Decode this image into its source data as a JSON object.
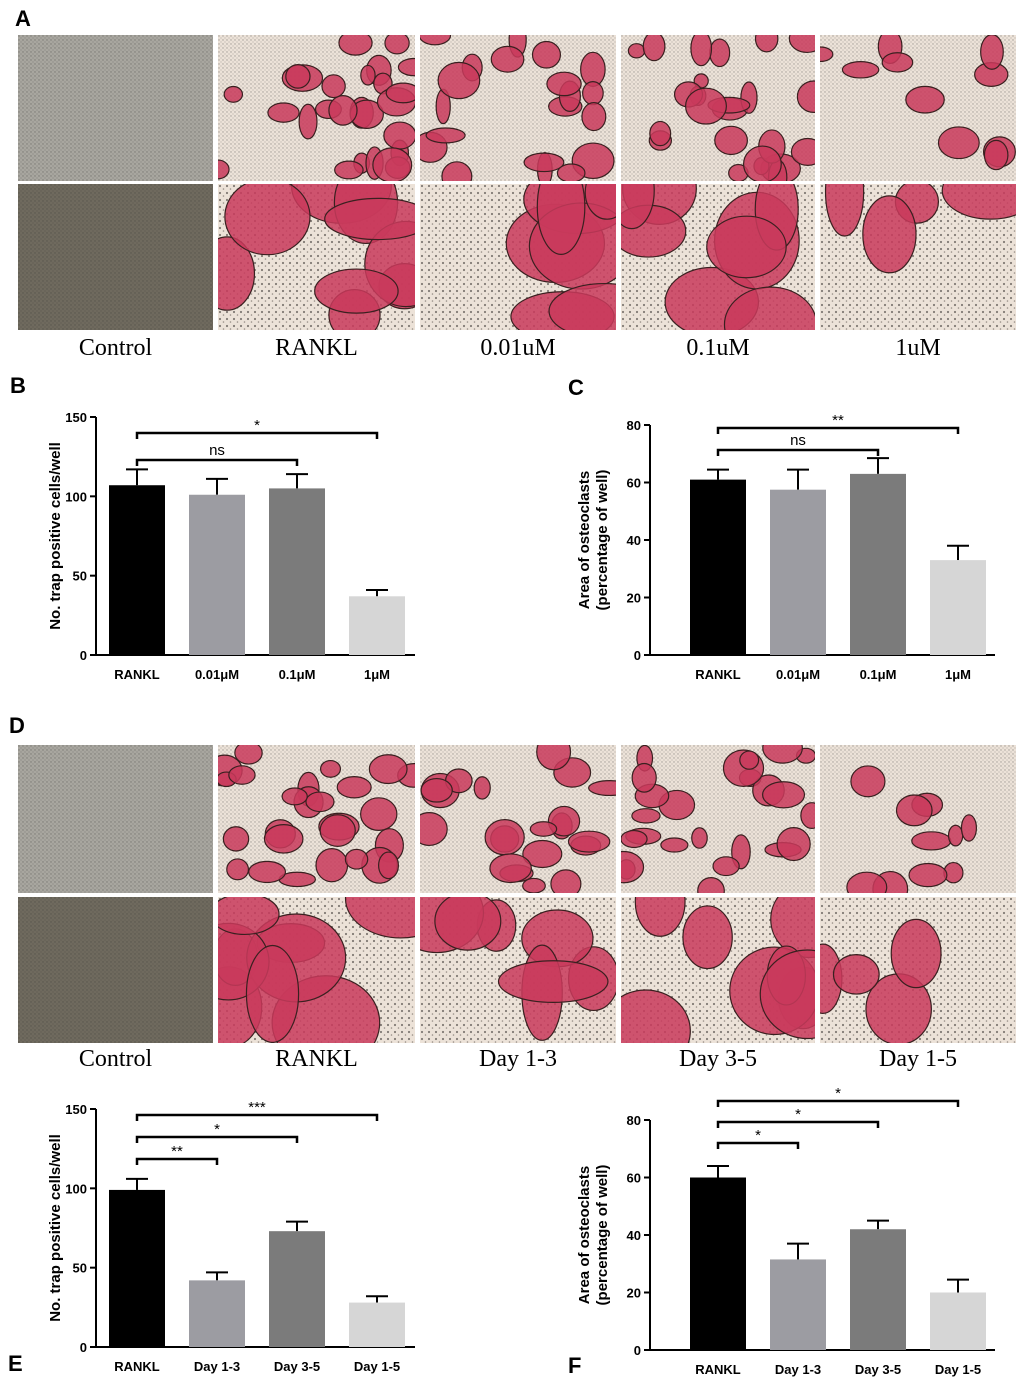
{
  "figure_a": {
    "label": "A",
    "captions": [
      "Control",
      "RANKL",
      "0.01uM",
      "0.1uM",
      "1uM"
    ]
  },
  "figure_d": {
    "label": "D",
    "captions": [
      "Control",
      "RANKL",
      "Day 1-3",
      "Day 3-5",
      "Day 1-5"
    ]
  },
  "chart_data": [
    {
      "type": "bar",
      "panel": "B",
      "ylabel": [
        "No. trap positive cells/well"
      ],
      "categories": [
        "RANKL",
        "0.01μM",
        "0.1μM",
        "1μM"
      ],
      "values": [
        107,
        101,
        105,
        37
      ],
      "errors": [
        10,
        10,
        9,
        4
      ],
      "colors": [
        "#000000",
        "#9c9ca2",
        "#7b7b7b",
        "#d6d6d6"
      ],
      "ylim": [
        0,
        150
      ],
      "yticks": [
        0,
        50,
        100,
        150
      ],
      "brackets": [
        {
          "label": "ns",
          "span": [
            0,
            2
          ]
        },
        {
          "label": "*",
          "span": [
            0,
            3
          ]
        }
      ]
    },
    {
      "type": "bar",
      "panel": "C",
      "ylabel": [
        "Area of osteoclasts",
        "(percentage of well)"
      ],
      "categories": [
        "RANKL",
        "0.01μM",
        "0.1μM",
        "1μM"
      ],
      "values": [
        61,
        57.5,
        63,
        33
      ],
      "errors": [
        3.5,
        7,
        5.5,
        5
      ],
      "colors": [
        "#000000",
        "#9c9ca2",
        "#7b7b7b",
        "#d6d6d6"
      ],
      "ylim": [
        0,
        80
      ],
      "yticks": [
        0,
        20,
        40,
        60,
        80
      ],
      "brackets": [
        {
          "label": "ns",
          "span": [
            0,
            2
          ]
        },
        {
          "label": "**",
          "span": [
            0,
            3
          ]
        }
      ]
    },
    {
      "type": "bar",
      "panel": "E",
      "ylabel": [
        "No. trap positive cells/well"
      ],
      "categories": [
        "RANKL",
        "Day 1-3",
        "Day 3-5",
        "Day 1-5"
      ],
      "values": [
        99,
        42,
        73,
        28
      ],
      "errors": [
        7,
        5,
        6,
        4
      ],
      "colors": [
        "#000000",
        "#9c9ca2",
        "#7b7b7b",
        "#d6d6d6"
      ],
      "ylim": [
        0,
        150
      ],
      "yticks": [
        0,
        50,
        100,
        150
      ],
      "brackets": [
        {
          "label": "**",
          "span": [
            0,
            1
          ]
        },
        {
          "label": "*",
          "span": [
            0,
            2
          ]
        },
        {
          "label": "***",
          "span": [
            0,
            3
          ]
        }
      ]
    },
    {
      "type": "bar",
      "panel": "F",
      "ylabel": [
        "Area of osteoclasts",
        "(percentage of well)"
      ],
      "categories": [
        "RANKL",
        "Day 1-3",
        "Day 3-5",
        "Day 1-5"
      ],
      "values": [
        60,
        31.5,
        42,
        20
      ],
      "errors": [
        4,
        5.5,
        3,
        4.5
      ],
      "colors": [
        "#000000",
        "#9c9ca2",
        "#7b7b7b",
        "#d6d6d6"
      ],
      "ylim": [
        0,
        80
      ],
      "yticks": [
        0,
        20,
        40,
        60,
        80
      ],
      "brackets": [
        {
          "label": "*",
          "span": [
            0,
            1
          ]
        },
        {
          "label": "*",
          "span": [
            0,
            2
          ]
        },
        {
          "label": "*",
          "span": [
            0,
            3
          ]
        }
      ]
    }
  ]
}
